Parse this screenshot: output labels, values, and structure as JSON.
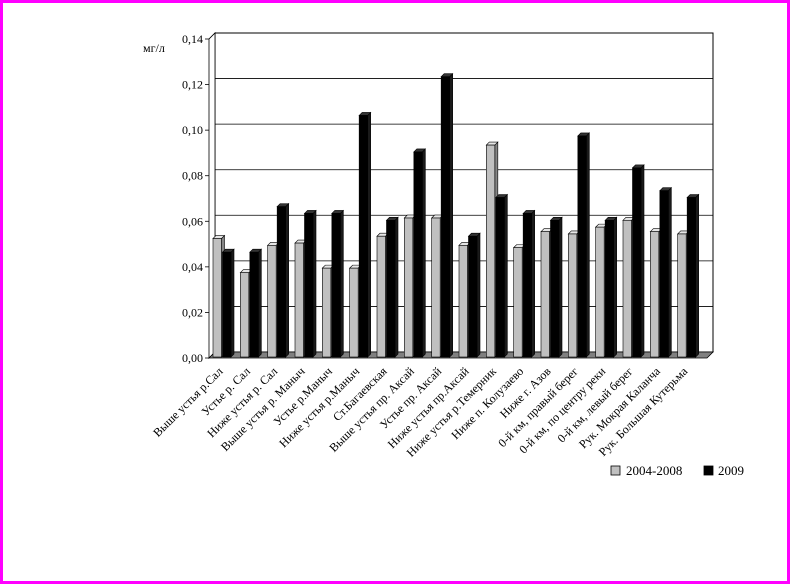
{
  "chart_data": {
    "type": "bar",
    "unit_label": "мг/л",
    "categories": [
      "Выше устья р.Сал",
      "Устье р. Сал",
      "Ниже устья р. Сал",
      "Выше устья р. Маныч",
      "Устье р.Маныч",
      "Ниже устья р.Маныч",
      "Ст.Багаевская",
      "Выше устья пр. Аксай",
      "Устье пр. Аксай",
      "Ниже устья пр.Аксай",
      "Ниже устья р.Темерник",
      "Ниже п. Колузаево",
      "Ниже г. Азов",
      "0-й км, правый берег",
      "0-й км, по центру реки",
      "0-й км, левый берег",
      "Рук. Мокрая Каланча",
      "Рук. Большая Кутерьма"
    ],
    "series": [
      {
        "name": "2004-2008",
        "color": "#c0c0c0",
        "values": [
          0.052,
          0.037,
          0.049,
          0.05,
          0.039,
          0.039,
          0.053,
          0.061,
          0.061,
          0.049,
          0.093,
          0.048,
          0.055,
          0.054,
          0.057,
          0.06,
          0.055,
          0.054
        ]
      },
      {
        "name": "2009",
        "color": "#000000",
        "values": [
          0.046,
          0.046,
          0.066,
          0.063,
          0.063,
          0.106,
          0.06,
          0.09,
          0.123,
          0.053,
          0.07,
          0.063,
          0.06,
          0.097,
          0.06,
          0.083,
          0.073,
          0.07
        ]
      }
    ],
    "yticks": [
      "0,00",
      "0,02",
      "0,04",
      "0,06",
      "0,08",
      "0,10",
      "0,12",
      "0,14"
    ],
    "ylim": [
      0,
      0.14
    ],
    "grid": true,
    "legend_position": "bottom-right"
  },
  "colors": {
    "frame": "#ff00ff"
  }
}
